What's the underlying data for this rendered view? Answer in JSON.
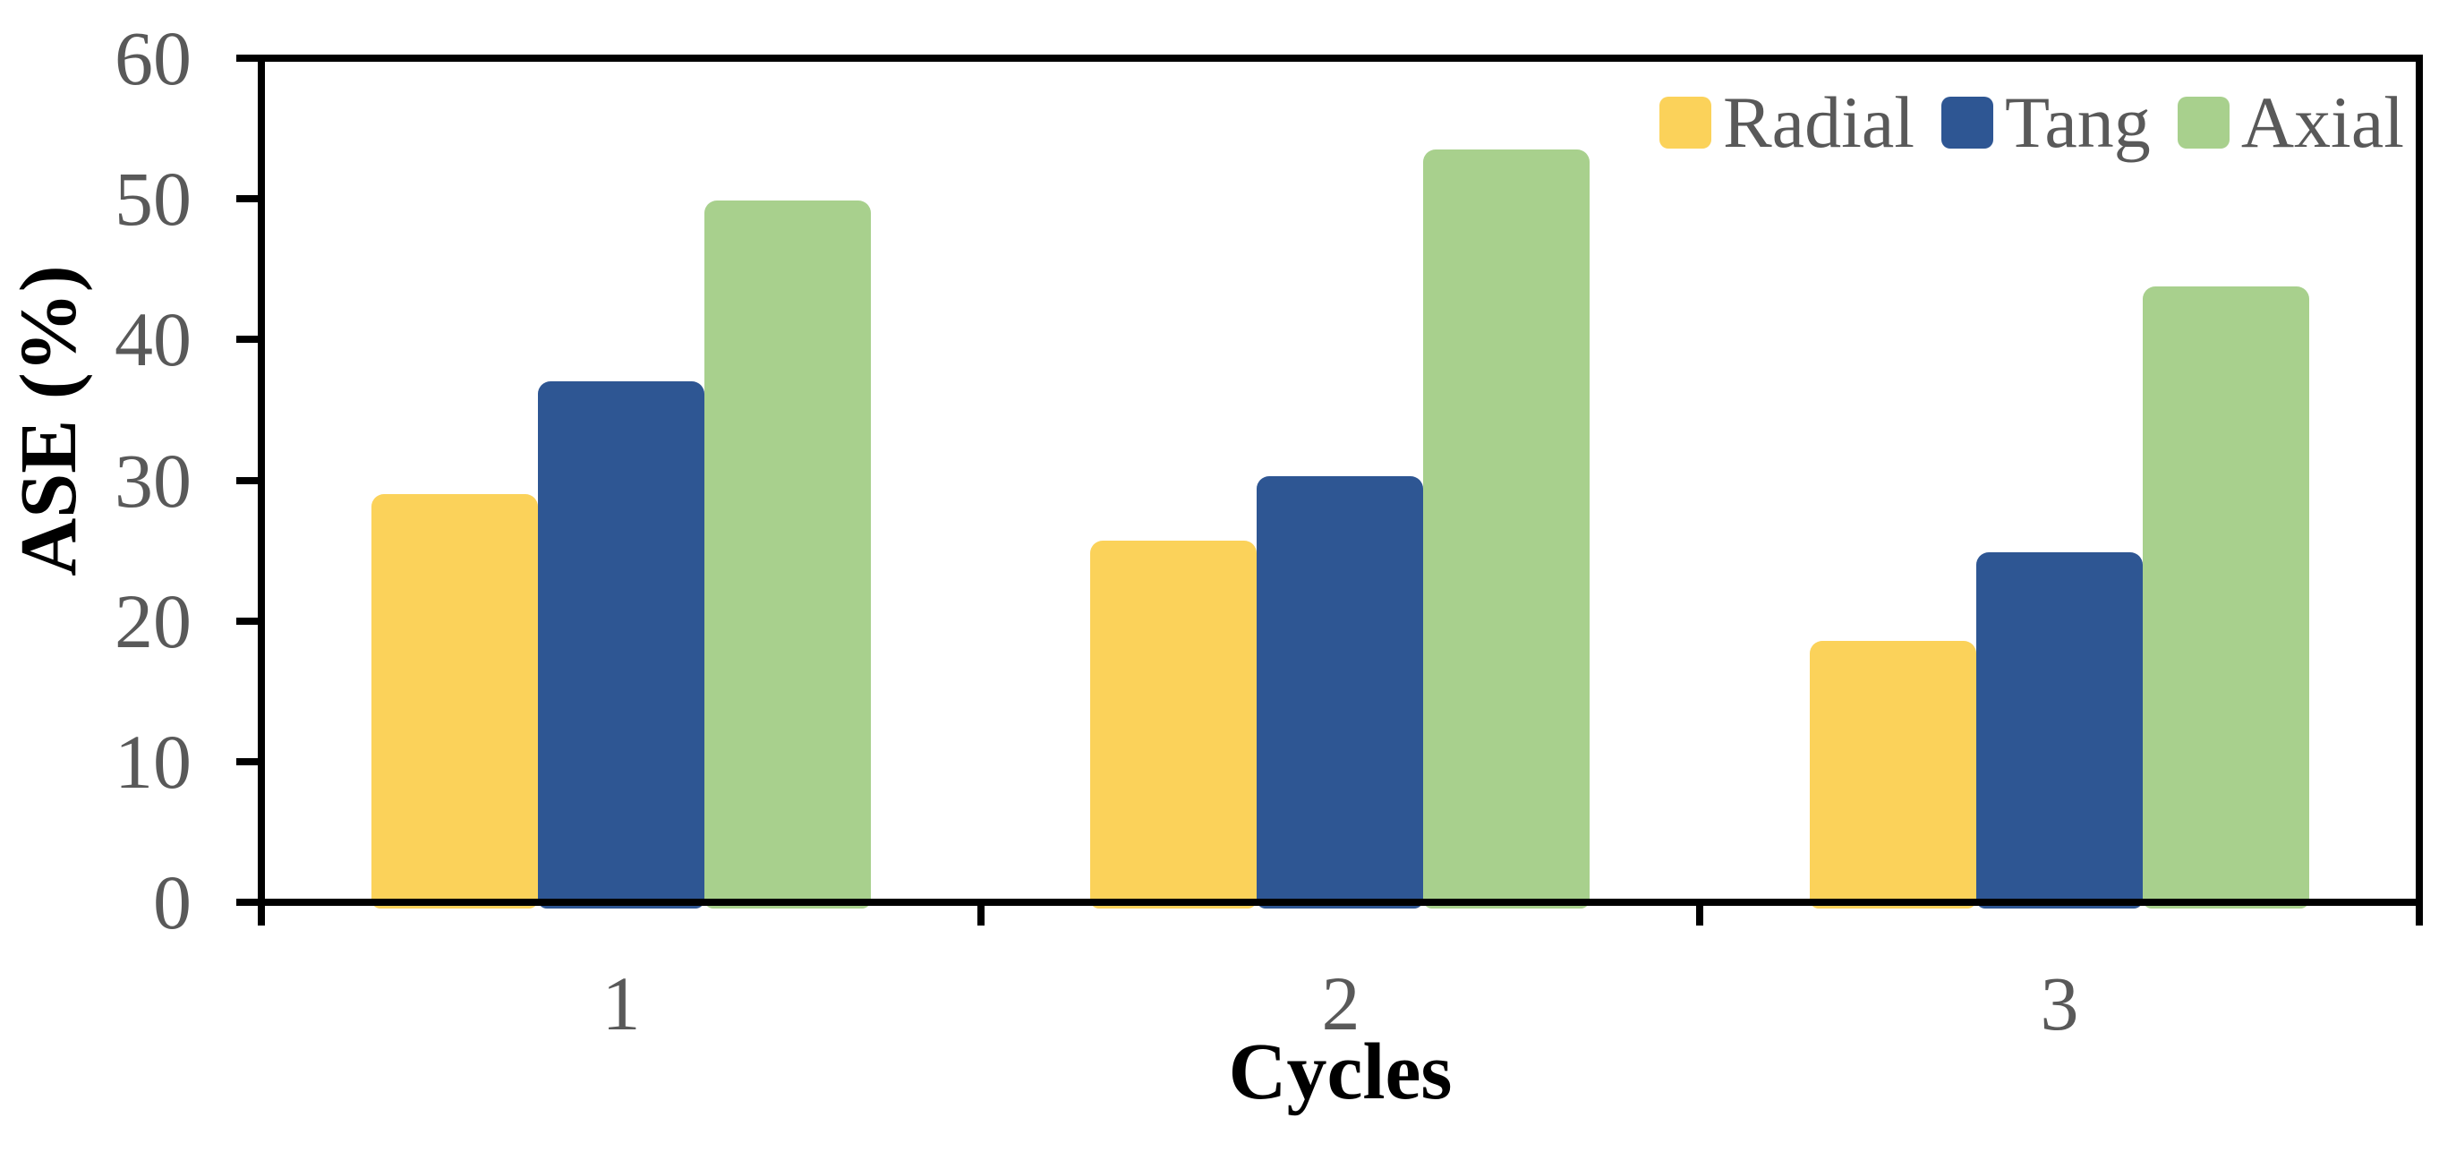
{
  "figure": {
    "background": "#ffffff"
  },
  "chart_data": {
    "type": "bar",
    "title": "",
    "xlabel": "Cycles",
    "ylabel": "ASE (%)",
    "categories": [
      "1",
      "2",
      "3"
    ],
    "series": [
      {
        "name": "Radial",
        "color": "#FBD25A",
        "values": [
          29.0,
          25.7,
          18.6
        ]
      },
      {
        "name": "Tang",
        "color": "#2E5693",
        "values": [
          37.0,
          30.3,
          24.9
        ]
      },
      {
        "name": "Axial",
        "color": "#A8D08D",
        "values": [
          49.9,
          53.5,
          43.8
        ]
      }
    ],
    "ylim": [
      0,
      60
    ],
    "yticks": [
      0,
      10,
      20,
      30,
      40,
      50,
      60
    ],
    "grid": false,
    "legend_position": "top-right",
    "axis_color": "#000000",
    "tick_label_color": "#595959",
    "axis_title_color": "#000000"
  }
}
